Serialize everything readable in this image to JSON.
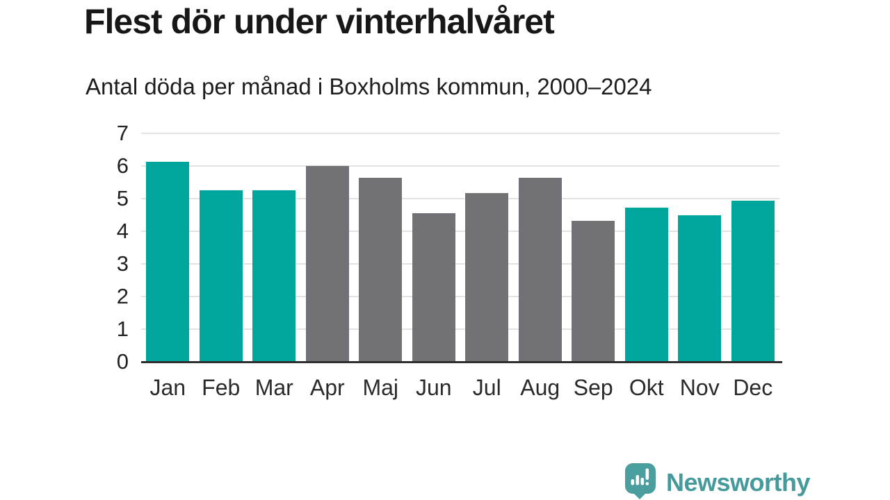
{
  "chart_data": {
    "type": "bar",
    "title": "Flest dör under vinterhalvåret",
    "subtitle": "Antal döda per månad i Boxholms kommun, 2000–2024",
    "categories": [
      "Jan",
      "Feb",
      "Mar",
      "Apr",
      "Maj",
      "Jun",
      "Jul",
      "Aug",
      "Sep",
      "Okt",
      "Nov",
      "Dec"
    ],
    "values": [
      6.13,
      5.25,
      5.25,
      6.0,
      5.64,
      4.56,
      5.17,
      5.64,
      4.31,
      4.72,
      4.5,
      4.93
    ],
    "bar_seasons": [
      "winter",
      "winter",
      "winter",
      "summer",
      "summer",
      "summer",
      "summer",
      "summer",
      "summer",
      "winter",
      "winter",
      "winter"
    ],
    "season_colors": {
      "winter": "#00a59b",
      "summer": "#727176"
    },
    "xlabel": "",
    "ylabel": "",
    "ylim": [
      0,
      7
    ],
    "yticks": [
      0,
      1,
      2,
      3,
      4,
      5,
      6,
      7
    ],
    "grid": "horizontal",
    "legend": "none"
  },
  "footer": {
    "brand": "Newsworthy",
    "brand_color": "#459a9b",
    "icon": "newsworthy-speech-bubble-bar-chart-icon"
  }
}
